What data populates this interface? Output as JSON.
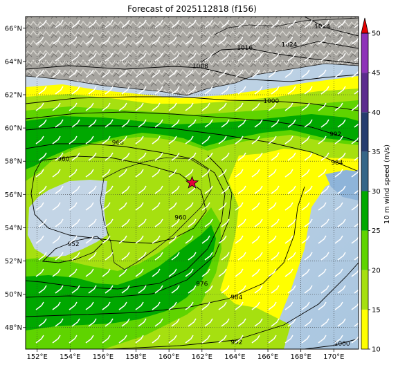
{
  "title": "Forecast of 2025112818 (f156)",
  "map": {
    "lon_range": [
      151.3,
      171.5
    ],
    "lat_range": [
      46.7,
      66.7
    ],
    "lon_ticks": [
      {
        "value": 152,
        "label": "152°E"
      },
      {
        "value": 154,
        "label": "154°E"
      },
      {
        "value": 156,
        "label": "156°E"
      },
      {
        "value": 158,
        "label": "158°E"
      },
      {
        "value": 160,
        "label": "160°E"
      },
      {
        "value": 162,
        "label": "162°E"
      },
      {
        "value": 164,
        "label": "164°E"
      },
      {
        "value": 166,
        "label": "166°E"
      },
      {
        "value": 168,
        "label": "168°E"
      },
      {
        "value": 170,
        "label": "170°E"
      }
    ],
    "lat_ticks": [
      {
        "value": 48,
        "label": "48°N"
      },
      {
        "value": 50,
        "label": "50°N"
      },
      {
        "value": 52,
        "label": "52°N"
      },
      {
        "value": 54,
        "label": "54°N"
      },
      {
        "value": 56,
        "label": "56°N"
      },
      {
        "value": 58,
        "label": "58°N"
      },
      {
        "value": 60,
        "label": "60°N"
      },
      {
        "value": 62,
        "label": "62°N"
      },
      {
        "value": 64,
        "label": "64°N"
      },
      {
        "value": 66,
        "label": "66°N"
      }
    ],
    "gridlines": "dotted",
    "storm_marker": {
      "lon": 161.4,
      "lat": 56.7,
      "color": "#e4003a",
      "icon": "star-icon"
    },
    "isobar_labels": [
      {
        "text": "1024",
        "lon": 169.3,
        "lat": 66.0
      },
      {
        "text": "1024",
        "lon": 167.3,
        "lat": 64.9
      },
      {
        "text": "1016",
        "lon": 164.6,
        "lat": 64.7
      },
      {
        "text": "1008",
        "lon": 161.9,
        "lat": 63.6
      },
      {
        "text": "1000",
        "lon": 166.2,
        "lat": 61.5
      },
      {
        "text": "992",
        "lon": 170.1,
        "lat": 59.5
      },
      {
        "text": "984",
        "lon": 170.2,
        "lat": 57.8
      },
      {
        "text": "968",
        "lon": 156.9,
        "lat": 59.0
      },
      {
        "text": "960",
        "lon": 153.6,
        "lat": 58.0
      },
      {
        "text": "960",
        "lon": 160.7,
        "lat": 54.5
      },
      {
        "text": "952",
        "lon": 154.2,
        "lat": 52.9
      },
      {
        "text": "976",
        "lon": 162.0,
        "lat": 50.5
      },
      {
        "text": "984",
        "lon": 164.1,
        "lat": 49.7
      },
      {
        "text": "992",
        "lon": 164.1,
        "lat": 47.0
      },
      {
        "text": "1000",
        "lon": 170.5,
        "lat": 46.9
      }
    ]
  },
  "colorbar": {
    "label": "10 m wind speed (m/s)",
    "ticks": [
      "10",
      "15",
      "20",
      "25",
      "30",
      "35",
      "40",
      "45",
      "50"
    ],
    "bins": [
      {
        "from": 10,
        "to": 15,
        "color": "#ffff00"
      },
      {
        "from": 15,
        "to": 20,
        "color": "#a6e010"
      },
      {
        "from": 20,
        "to": 25,
        "color": "#5fd400"
      },
      {
        "from": 25,
        "to": 30,
        "color": "#00a800"
      },
      {
        "from": 30,
        "to": 35,
        "color": "#356688"
      },
      {
        "from": 35,
        "to": 40,
        "color": "#263c6e"
      },
      {
        "from": 40,
        "to": 45,
        "color": "#5c2c8e"
      },
      {
        "from": 45,
        "to": 50,
        "color": "#8e32b8"
      }
    ],
    "extend_color": "#e60000"
  }
}
